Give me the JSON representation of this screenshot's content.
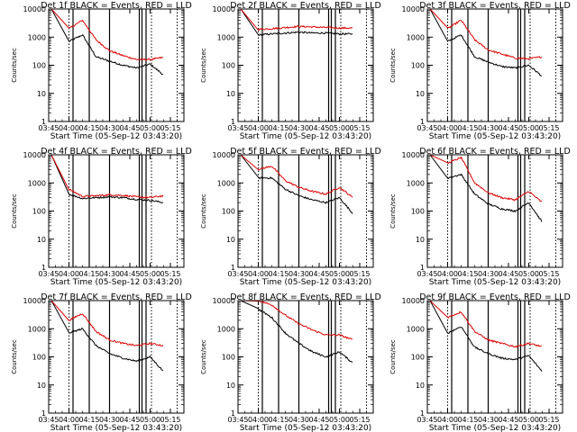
{
  "figure": {
    "xtick_labels": [
      "03:45",
      "04:00",
      "04:15",
      "04:30",
      "04:45",
      "05:00",
      "05:15"
    ],
    "ytick_labels": [
      "1",
      "10",
      "100",
      "1000",
      "10000"
    ],
    "xlabel": "Start Time (05-Sep-12 03:43:20)",
    "ylabel": "Counts/sec",
    "legend_black": "BLACK = Events",
    "legend_red": "RED = LLD",
    "colors": {
      "events": "#000000",
      "lld": "#e00000",
      "frame": "#000000"
    }
  },
  "chart_data": [
    {
      "type": "line",
      "title": "Det 1f  BLACK = Events, RED = LLD",
      "xlabel": "Start Time (05-Sep-12 03:43:20)",
      "ylabel": "Counts/sec",
      "y_scale": "log",
      "ylim": [
        1,
        10000
      ],
      "x": [
        "04:00",
        "04:10",
        "04:20",
        "04:30",
        "04:40",
        "04:50",
        "05:00",
        "05:10"
      ],
      "series": [
        {
          "name": "Events",
          "values": [
            700,
            1200,
            200,
            140,
            100,
            80,
            110,
            45
          ]
        },
        {
          "name": "LLD",
          "values": [
            2000,
            4000,
            800,
            330,
            220,
            160,
            160,
            190
          ]
        }
      ],
      "vlines_solid": [
        "04:03",
        "04:15",
        "04:30",
        "04:52",
        "04:54",
        "04:57"
      ],
      "vlines_dotted": [
        "04:00",
        "05:01",
        "05:20"
      ]
    },
    {
      "type": "line",
      "title": "Det 2f  BLACK = Events, RED = LLD",
      "xlabel": "Start Time (05-Sep-12 03:43:20)",
      "ylabel": "Counts/sec",
      "y_scale": "log",
      "ylim": [
        1,
        10000
      ],
      "x": [
        "04:00",
        "04:10",
        "04:20",
        "04:30",
        "04:40",
        "04:50",
        "05:00",
        "05:10"
      ],
      "series": [
        {
          "name": "Events",
          "values": [
            1200,
            1300,
            1400,
            1500,
            1400,
            1400,
            1300,
            1300
          ]
        },
        {
          "name": "LLD",
          "values": [
            1900,
            2000,
            2200,
            2400,
            2300,
            2200,
            2100,
            2100
          ]
        }
      ],
      "vlines_solid": [
        "04:03",
        "04:15",
        "04:30",
        "04:52",
        "04:54",
        "04:57"
      ],
      "vlines_dotted": [
        "04:00",
        "05:01",
        "05:20"
      ]
    },
    {
      "type": "line",
      "title": "Det 3f  BLACK = Events, RED = LLD",
      "xlabel": "Start Time (05-Sep-12 03:43:20)",
      "ylabel": "Counts/sec",
      "y_scale": "log",
      "ylim": [
        1,
        10000
      ],
      "x": [
        "04:00",
        "04:10",
        "04:20",
        "04:30",
        "04:40",
        "04:50",
        "05:00",
        "05:10"
      ],
      "series": [
        {
          "name": "Events",
          "values": [
            700,
            1200,
            200,
            130,
            90,
            80,
            100,
            40
          ]
        },
        {
          "name": "LLD",
          "values": [
            2000,
            4000,
            800,
            350,
            250,
            180,
            170,
            200
          ]
        }
      ],
      "vlines_solid": [
        "04:03",
        "04:15",
        "04:30",
        "04:52",
        "04:54",
        "04:57"
      ],
      "vlines_dotted": [
        "04:00",
        "05:01",
        "05:20"
      ]
    },
    {
      "type": "line",
      "title": "Det 4f  BLACK = Events, RED = LLD",
      "xlabel": "Start Time (05-Sep-12 03:43:20)",
      "ylabel": "Counts/sec",
      "y_scale": "log",
      "ylim": [
        1,
        10000
      ],
      "x": [
        "04:00",
        "04:10",
        "04:20",
        "04:30",
        "04:40",
        "04:50",
        "05:00",
        "05:10"
      ],
      "series": [
        {
          "name": "Events",
          "values": [
            400,
            280,
            300,
            320,
            300,
            260,
            240,
            200
          ]
        },
        {
          "name": "LLD",
          "values": [
            600,
            330,
            350,
            380,
            360,
            320,
            300,
            350
          ]
        }
      ],
      "vlines_solid": [
        "04:03",
        "04:15",
        "04:30",
        "04:52",
        "04:54",
        "04:57"
      ],
      "vlines_dotted": [
        "04:00",
        "05:01",
        "05:20"
      ]
    },
    {
      "type": "line",
      "title": "Det 5f  BLACK = Events, RED = LLD",
      "xlabel": "Start Time (05-Sep-12 03:43:20)",
      "ylabel": "Counts/sec",
      "y_scale": "log",
      "ylim": [
        1,
        10000
      ],
      "x": [
        "04:00",
        "04:10",
        "04:20",
        "04:30",
        "04:40",
        "04:50",
        "05:00",
        "05:10"
      ],
      "series": [
        {
          "name": "Events",
          "values": [
            1500,
            1500,
            600,
            350,
            250,
            200,
            300,
            80
          ]
        },
        {
          "name": "LLD",
          "values": [
            3000,
            4000,
            1200,
            700,
            500,
            400,
            700,
            300
          ]
        }
      ],
      "vlines_solid": [
        "04:03",
        "04:15",
        "04:30",
        "04:52",
        "04:54",
        "04:57"
      ],
      "vlines_dotted": [
        "04:00",
        "05:01",
        "05:20"
      ]
    },
    {
      "type": "line",
      "title": "Det 6f  BLACK = Events, RED = LLD",
      "xlabel": "Start Time (05-Sep-12 03:43:20)",
      "ylabel": "Counts/sec",
      "y_scale": "log",
      "ylim": [
        1,
        10000
      ],
      "x": [
        "04:00",
        "04:10",
        "04:20",
        "04:30",
        "04:40",
        "04:50",
        "05:00",
        "05:10"
      ],
      "series": [
        {
          "name": "Events",
          "values": [
            1500,
            2000,
            400,
            180,
            120,
            100,
            200,
            40
          ]
        },
        {
          "name": "LLD",
          "values": [
            5000,
            8000,
            1000,
            450,
            300,
            250,
            500,
            200
          ]
        }
      ],
      "vlines_solid": [
        "04:03",
        "04:15",
        "04:30",
        "04:52",
        "04:54",
        "04:57"
      ],
      "vlines_dotted": [
        "04:00",
        "05:01",
        "05:20"
      ]
    },
    {
      "type": "line",
      "title": "Det 7f  BLACK = Events, RED = LLD",
      "xlabel": "Start Time (05-Sep-12 03:43:20)",
      "ylabel": "Counts/sec",
      "y_scale": "log",
      "ylim": [
        1,
        10000
      ],
      "x": [
        "04:00",
        "04:10",
        "04:20",
        "04:30",
        "04:40",
        "04:50",
        "05:00",
        "05:10"
      ],
      "series": [
        {
          "name": "Events",
          "values": [
            700,
            1000,
            250,
            130,
            90,
            70,
            100,
            30
          ]
        },
        {
          "name": "LLD",
          "values": [
            2000,
            3500,
            800,
            400,
            300,
            250,
            300,
            250
          ]
        }
      ],
      "vlines_solid": [
        "04:03",
        "04:15",
        "04:30",
        "04:52",
        "04:54",
        "04:57"
      ],
      "vlines_dotted": [
        "04:00",
        "05:01",
        "05:20"
      ]
    },
    {
      "type": "line",
      "title": "Det 8f  BLACK = Events, RED = LLD",
      "xlabel": "Start Time (05-Sep-12 03:43:20)",
      "ylabel": "Counts/sec",
      "y_scale": "log",
      "ylim": [
        1,
        10000
      ],
      "x": [
        "04:00",
        "04:10",
        "04:20",
        "04:30",
        "04:40",
        "04:50",
        "05:00",
        "05:10"
      ],
      "series": [
        {
          "name": "Events",
          "values": [
            5000,
            2500,
            700,
            300,
            150,
            100,
            150,
            60
          ]
        },
        {
          "name": "LLD",
          "values": [
            10000,
            7000,
            3000,
            1500,
            900,
            600,
            600,
            400
          ]
        }
      ],
      "vlines_solid": [
        "04:03",
        "04:15",
        "04:30",
        "04:52",
        "04:54",
        "04:57"
      ],
      "vlines_dotted": [
        "04:00",
        "05:01",
        "05:20"
      ]
    },
    {
      "type": "line",
      "title": "Det 9f  BLACK = Events, RED = LLD",
      "xlabel": "Start Time (05-Sep-12 03:43:20)",
      "ylabel": "Counts/sec",
      "y_scale": "log",
      "ylim": [
        1,
        10000
      ],
      "x": [
        "04:00",
        "04:10",
        "04:20",
        "04:30",
        "04:40",
        "04:50",
        "05:00",
        "05:10"
      ],
      "series": [
        {
          "name": "Events",
          "values": [
            700,
            1200,
            220,
            130,
            90,
            80,
            110,
            30
          ]
        },
        {
          "name": "LLD",
          "values": [
            2500,
            4000,
            800,
            400,
            300,
            230,
            300,
            230
          ]
        }
      ],
      "vlines_solid": [
        "04:03",
        "04:15",
        "04:30",
        "04:52",
        "04:54",
        "04:57"
      ],
      "vlines_dotted": [
        "04:00",
        "05:01",
        "05:20"
      ]
    }
  ]
}
